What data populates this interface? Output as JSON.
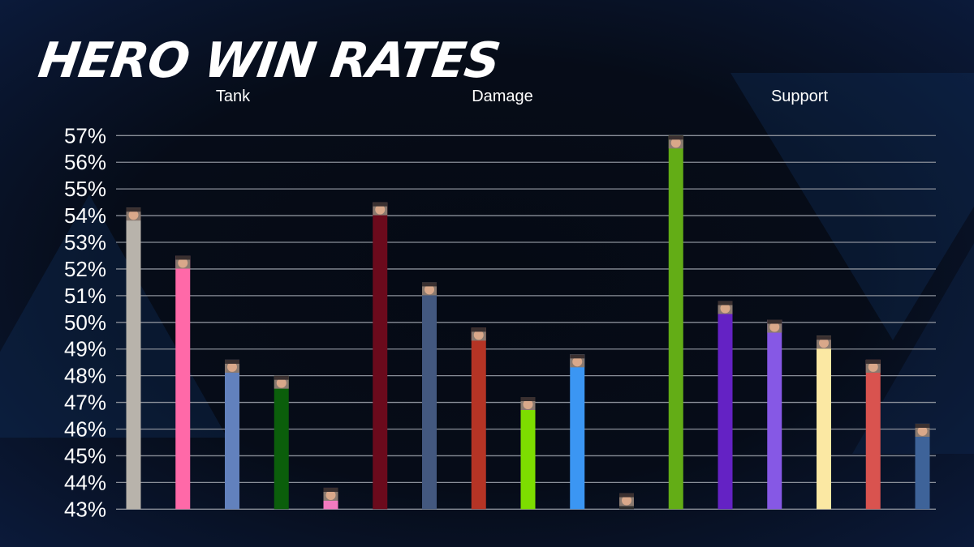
{
  "title": "HERO WIN RATES",
  "groups": [
    "Tank",
    "Damage",
    "Support"
  ],
  "chart_data": {
    "type": "bar",
    "title": "HERO WIN RATES",
    "xlabel": "",
    "ylabel": "",
    "ylim": [
      43,
      57
    ],
    "yticks": [
      "57%",
      "56%",
      "55%",
      "54%",
      "53%",
      "52%",
      "51%",
      "50%",
      "49%",
      "48%",
      "47%",
      "46%",
      "45%",
      "44%",
      "43%"
    ],
    "grid": true,
    "group_labels": [
      "Tank",
      "Damage",
      "Support"
    ],
    "bar_groups": [
      "Tank",
      "Tank",
      "Tank",
      "Tank",
      "Tank",
      "Damage",
      "Damage",
      "Damage",
      "Damage",
      "Damage",
      "Damage",
      "Support",
      "Support",
      "Support",
      "Support",
      "Support",
      "Support"
    ],
    "values": [
      54.3,
      52.5,
      48.6,
      48.0,
      43.8,
      54.5,
      51.5,
      49.8,
      47.2,
      48.8,
      43.6,
      57.0,
      50.8,
      50.1,
      49.5,
      48.6,
      46.2
    ],
    "colors": [
      "#b8b3ab",
      "#ff69a8",
      "#6281bd",
      "#0b5e0b",
      "#f27bbf",
      "#6b0a1c",
      "#43587f",
      "#b53425",
      "#7ddd00",
      "#3b96f3",
      "#2e2e2e",
      "#63ad16",
      "#6422c4",
      "#8658e5",
      "#fbe8a3",
      "#d9534f",
      "#3e6399"
    ],
    "bar_markers": "hero-portrait-icon"
  }
}
